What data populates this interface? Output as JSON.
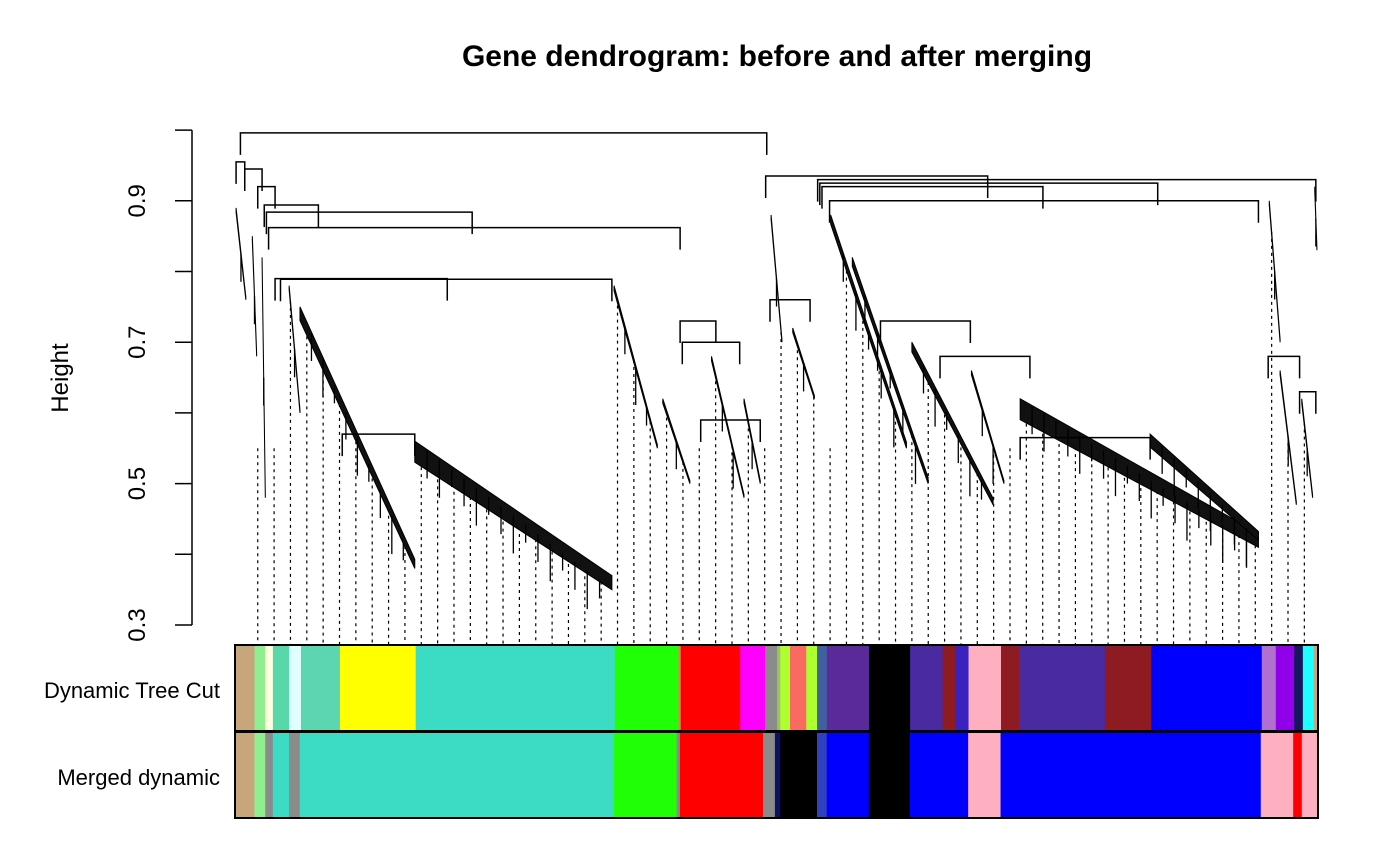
{
  "chart_data": {
    "type": "dendrogram",
    "title": "Gene dendrogram: before and after merging",
    "xlabel": "",
    "ylabel": "Height",
    "ylim": [
      0.3,
      1.0
    ],
    "yticks": [
      0.3,
      0.4,
      0.5,
      0.6,
      0.7,
      0.8,
      0.9,
      1.0
    ],
    "ytick_labels": [
      "0.3",
      "",
      "0.5",
      "",
      "0.7",
      "",
      "0.9",
      ""
    ],
    "merges_leaf_fraction_height": [
      [
        0.005,
        0.491,
        0.996
      ],
      [
        0.001,
        0.009,
        0.955
      ],
      [
        0.009,
        0.025,
        0.945
      ],
      [
        0.021,
        0.037,
        0.92
      ],
      [
        0.027,
        0.077,
        0.894
      ],
      [
        0.029,
        0.219,
        0.884
      ],
      [
        0.031,
        0.411,
        0.862
      ],
      [
        0.037,
        0.196,
        0.79
      ],
      [
        0.042,
        0.348,
        0.789
      ],
      [
        0.099,
        0.166,
        0.57
      ],
      [
        0.411,
        0.444,
        0.73
      ],
      [
        0.413,
        0.466,
        0.7
      ],
      [
        0.49,
        0.695,
        0.935
      ],
      [
        0.538,
        0.998,
        0.93
      ],
      [
        0.54,
        0.852,
        0.925
      ],
      [
        0.542,
        0.746,
        0.92
      ],
      [
        0.549,
        0.945,
        0.9
      ],
      [
        0.596,
        0.679,
        0.73
      ],
      [
        0.651,
        0.734,
        0.68
      ],
      [
        0.725,
        0.845,
        0.565
      ],
      [
        0.954,
        0.983,
        0.68
      ],
      [
        0.983,
        0.998,
        0.63
      ],
      [
        0.43,
        0.485,
        0.59
      ],
      [
        0.494,
        0.531,
        0.76
      ]
    ],
    "branch_fans_leaf_fraction_height": [
      [
        0.001,
        0.89,
        0.01,
        0.76
      ],
      [
        0.016,
        0.85,
        0.02,
        0.68
      ],
      [
        0.025,
        0.82,
        0.028,
        0.48
      ],
      [
        0.05,
        0.78,
        0.06,
        0.6
      ],
      [
        0.06,
        0.75,
        0.166,
        0.38
      ],
      [
        0.166,
        0.56,
        0.348,
        0.35
      ],
      [
        0.35,
        0.78,
        0.39,
        0.55
      ],
      [
        0.395,
        0.62,
        0.42,
        0.5
      ],
      [
        0.44,
        0.68,
        0.47,
        0.48
      ],
      [
        0.47,
        0.62,
        0.485,
        0.5
      ],
      [
        0.495,
        0.88,
        0.505,
        0.7
      ],
      [
        0.515,
        0.72,
        0.535,
        0.62
      ],
      [
        0.55,
        0.88,
        0.62,
        0.55
      ],
      [
        0.57,
        0.82,
        0.64,
        0.5
      ],
      [
        0.625,
        0.7,
        0.7,
        0.47
      ],
      [
        0.68,
        0.66,
        0.71,
        0.5
      ],
      [
        0.725,
        0.62,
        0.945,
        0.41
      ],
      [
        0.845,
        0.57,
        0.945,
        0.42
      ],
      [
        0.955,
        0.9,
        0.965,
        0.7
      ],
      [
        0.965,
        0.66,
        0.98,
        0.47
      ],
      [
        0.985,
        0.62,
        0.995,
        0.48
      ],
      [
        0.997,
        0.92,
        0.999,
        0.83
      ]
    ],
    "color_rows": [
      {
        "label": "Dynamic Tree Cut",
        "segments": [
          [
            "#C8A67C",
            0.018
          ],
          [
            "#90EE90",
            0.01
          ],
          [
            "#FFFFE0",
            0.007
          ],
          [
            "#58D8A8",
            0.015
          ],
          [
            "#E0FFFF",
            0.011
          ],
          [
            "#5CD6B0",
            0.036
          ],
          [
            "#FFFF00",
            0.07
          ],
          [
            "#3CDBC4",
            0.184
          ],
          [
            "#21FF06",
            0.059
          ],
          [
            "#FF7060",
            0.002
          ],
          [
            "#FF0000",
            0.055
          ],
          [
            "#FF00FF",
            0.023
          ],
          [
            "#8B8B8B",
            0.011
          ],
          [
            "#A0C060",
            0.003
          ],
          [
            "#ADFF2F",
            0.009
          ],
          [
            "#FA6A60",
            0.015
          ],
          [
            "#ADFF2F",
            0.01
          ],
          [
            "#4060A0",
            0.009
          ],
          [
            "#5A2A9A",
            0.039
          ],
          [
            "#000000",
            0.038
          ],
          [
            "#4A2AA0",
            0.03
          ],
          [
            "#8E1A22",
            0.012
          ],
          [
            "#3A22C0",
            0.012
          ],
          [
            "#FFB0C0",
            0.03
          ],
          [
            "#8E1A22",
            0.017
          ],
          [
            "#4A2AA0",
            0.079
          ],
          [
            "#8E1A22",
            0.043
          ],
          [
            "#0000FF",
            0.102
          ],
          [
            "#B070D0",
            0.013
          ],
          [
            "#9000E8",
            0.017
          ],
          [
            "#18165A",
            0.008
          ],
          [
            "#1EFFFF",
            0.01
          ],
          [
            "#C8A67C",
            0.004
          ]
        ]
      },
      {
        "label": "Merged dynamic",
        "segments": [
          [
            "#C8A67C",
            0.018
          ],
          [
            "#90EE90",
            0.01
          ],
          [
            "#8B8B8B",
            0.007
          ],
          [
            "#3CDBC4",
            0.015
          ],
          [
            "#8B8B8B",
            0.01
          ],
          [
            "#3CDBC4",
            0.291
          ],
          [
            "#21FF06",
            0.058
          ],
          [
            "#8B8B8B",
            0.003
          ],
          [
            "#FF0000",
            0.077
          ],
          [
            "#8B8B8B",
            0.011
          ],
          [
            "#101060",
            0.005
          ],
          [
            "#000000",
            0.034
          ],
          [
            "#3040C0",
            0.009
          ],
          [
            "#0000FF",
            0.039
          ],
          [
            "#000000",
            0.038
          ],
          [
            "#0000FF",
            0.054
          ],
          [
            "#FFB0C0",
            0.03
          ],
          [
            "#0000FF",
            0.241
          ],
          [
            "#FFB0C0",
            0.03
          ],
          [
            "#FF0000",
            0.008
          ],
          [
            "#FFB0C0",
            0.015
          ]
        ]
      }
    ]
  }
}
